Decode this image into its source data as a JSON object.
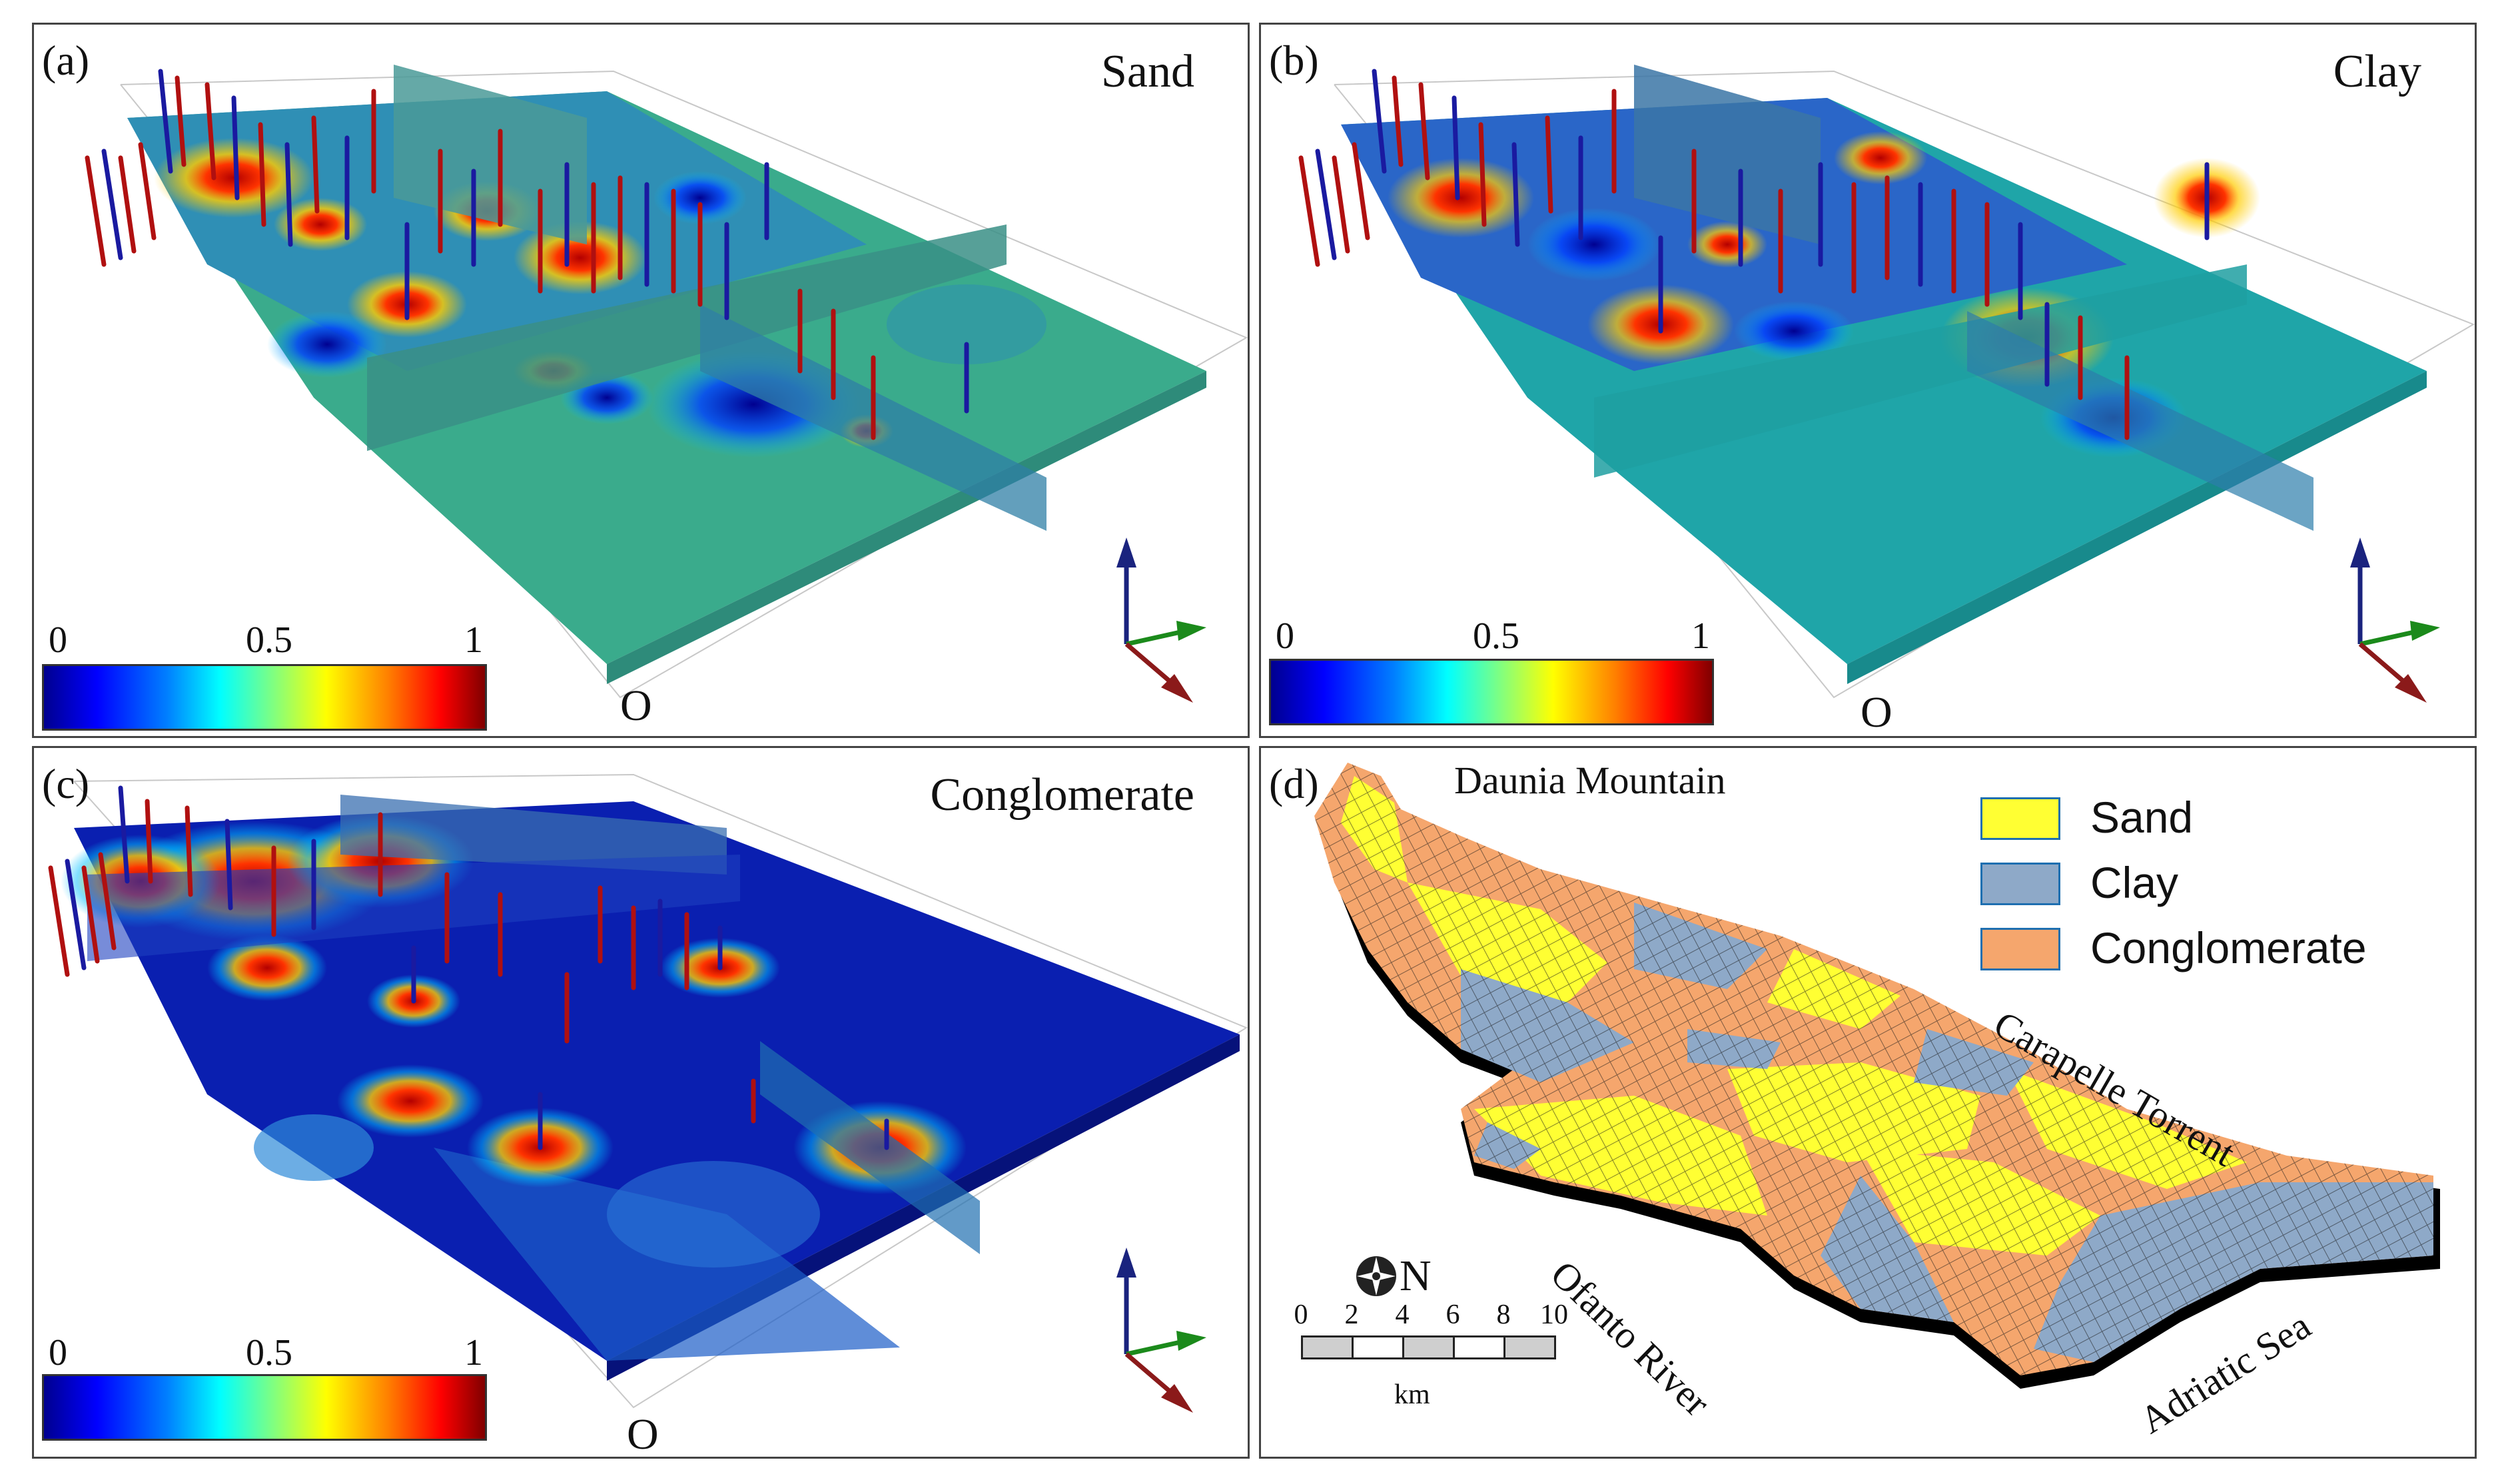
{
  "panels": {
    "a": {
      "label": "(a)",
      "title": "Sand",
      "origin": "O"
    },
    "b": {
      "label": "(b)",
      "title": "Clay",
      "origin": "O"
    },
    "c": {
      "label": "(c)",
      "title": "Conglomerate",
      "origin": "O"
    },
    "d": {
      "label": "(d)"
    }
  },
  "colorbar": {
    "min": "0",
    "mid": "0.5",
    "max": "1",
    "colormap": "jet"
  },
  "axes_widget": {
    "z": "z",
    "y": "y",
    "x": "x",
    "colors": {
      "z": "#1a237e",
      "y": "#1b8a1b",
      "x": "#8b1a1a"
    }
  },
  "legend": {
    "items": [
      {
        "label": "Sand",
        "color": "#ffff33"
      },
      {
        "label": "Clay",
        "color": "#8ea9c8"
      },
      {
        "label": "Conglomerate",
        "color": "#f5a66d"
      }
    ]
  },
  "map_labels": {
    "daunia": "Daunia Mountain",
    "carapelle": "Carapelle Torrent",
    "ofanto": "Ofanto River",
    "adriatic": "Adriatic Sea"
  },
  "scale": {
    "ticks": [
      "0",
      "2",
      "4",
      "6",
      "8",
      "10"
    ],
    "unit": "km"
  },
  "north": {
    "label": "N"
  }
}
